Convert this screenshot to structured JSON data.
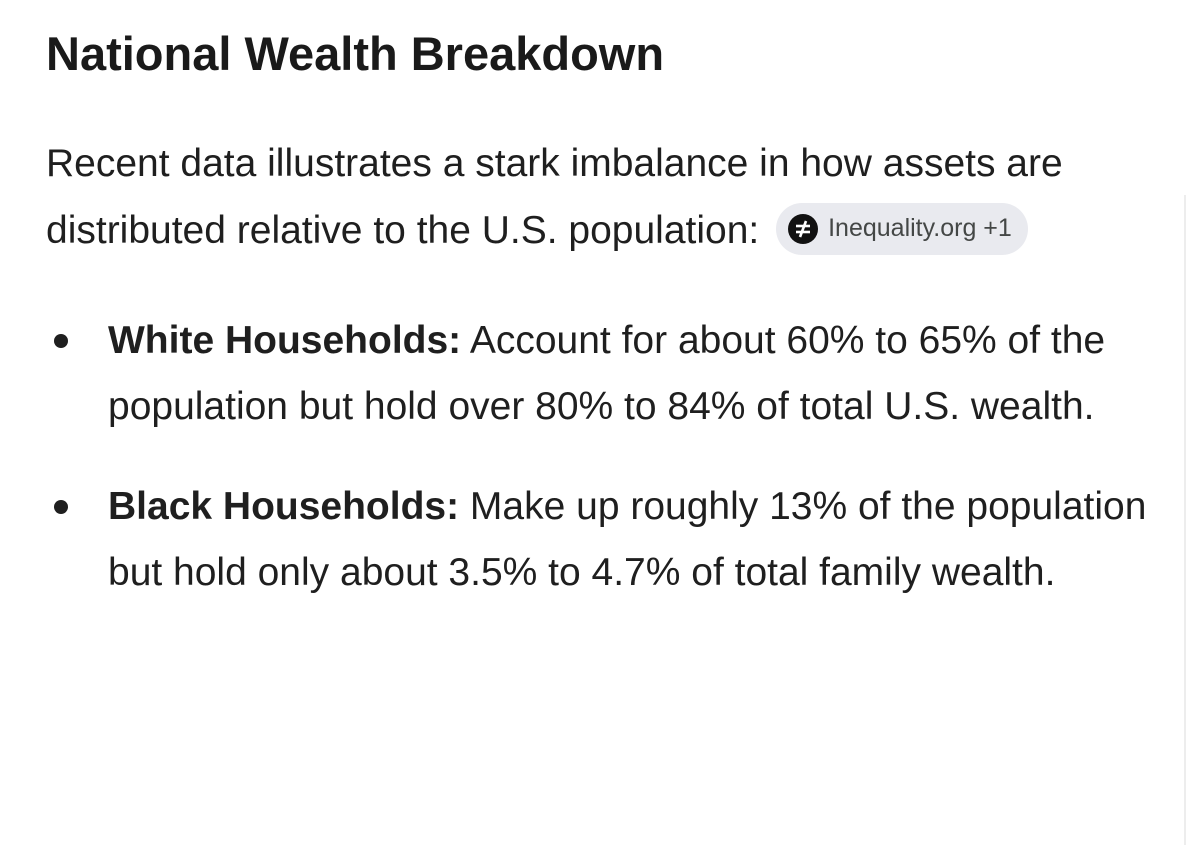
{
  "heading": {
    "title": "National Wealth Breakdown"
  },
  "intro": {
    "text": "Recent data illustrates a stark imbalance in how assets are distributed relative to the U.S. population:",
    "source_chip": {
      "label": "Inequality.org +1"
    }
  },
  "bullets": [
    {
      "term": "White Households:",
      "text": "Account for about 60% to 65% of the population but hold over 80% to 84% of total U.S. wealth."
    },
    {
      "term": "Black Households:",
      "text": "Make up roughly 13% of the population but hold only about 3.5% to 4.7% of total family wealth."
    }
  ]
}
